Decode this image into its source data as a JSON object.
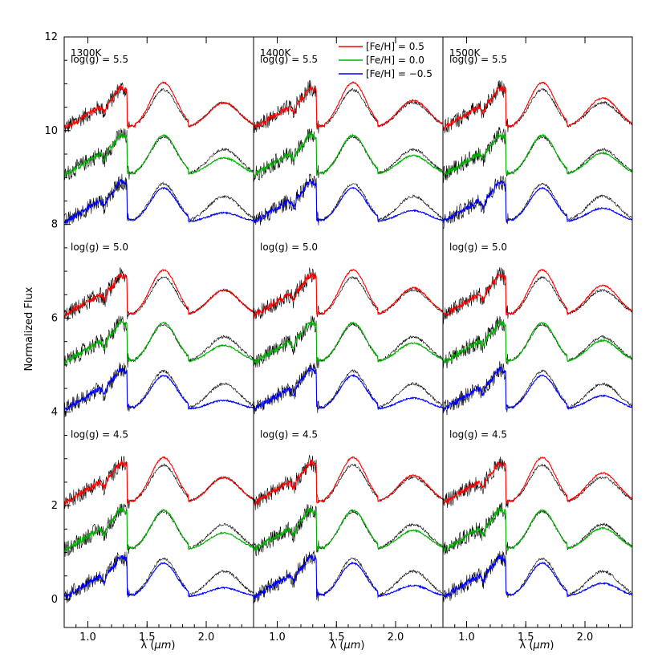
{
  "chart_data": {
    "type": "line",
    "ylabel": "Normalized Flux",
    "xlabel_prefix": "λ (",
    "xlabel_unit": "μm",
    "xlabel_suffix": ")",
    "xlim": [
      0.8,
      2.4
    ],
    "ylim": [
      -0.6,
      12
    ],
    "x_ticks": [
      {
        "value": 1.0,
        "label": "1.0"
      },
      {
        "value": 1.5,
        "label": "1.5"
      },
      {
        "value": 2.0,
        "label": "2.0"
      }
    ],
    "y_ticks": [
      {
        "value": 0,
        "label": "0"
      },
      {
        "value": 2,
        "label": "2"
      },
      {
        "value": 4,
        "label": "4"
      },
      {
        "value": 6,
        "label": "6"
      },
      {
        "value": 8,
        "label": "8"
      },
      {
        "value": 10,
        "label": "10"
      },
      {
        "value": 12,
        "label": "12"
      }
    ],
    "columns": [
      {
        "teff": 1300,
        "label": "1300K"
      },
      {
        "teff": 1400,
        "label": "1400K"
      },
      {
        "teff": 1500,
        "label": "1500K"
      }
    ],
    "rows": [
      {
        "logg": 5.5,
        "label": "log(g) = 5.5",
        "offset": 8
      },
      {
        "logg": 5.0,
        "label": "log(g) = 5.0",
        "offset": 4
      },
      {
        "logg": 4.5,
        "label": "log(g) = 4.5",
        "offset": 0
      }
    ],
    "metallicity_series": [
      {
        "name": "[Fe/H] = 0.5",
        "feh": 0.5,
        "color": "#ff0000",
        "stack_offset": 2
      },
      {
        "name": "[Fe/H] = 0.0",
        "feh": 0.0,
        "color": "#00b000",
        "stack_offset": 1
      },
      {
        "name": "[Fe/H] = −0.5",
        "feh": -0.5,
        "color": "#0000ff",
        "stack_offset": 0
      }
    ],
    "observed_color": "#000000",
    "legend_position": "top-center"
  }
}
